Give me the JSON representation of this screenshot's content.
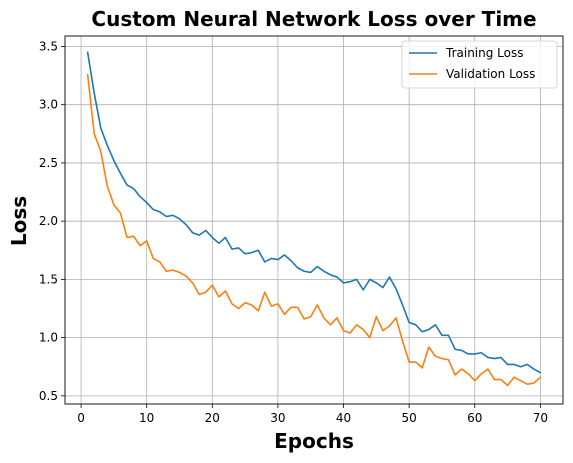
{
  "chart_data": {
    "type": "line",
    "title": "Custom Neural Network Loss over Time",
    "xlabel": "Epochs",
    "ylabel": "Loss",
    "xlim": [
      -2.45,
      73.45
    ],
    "ylim": [
      0.43,
      3.59
    ],
    "xticks": [
      0,
      10,
      20,
      30,
      40,
      50,
      60,
      70
    ],
    "yticks": [
      0.5,
      1.0,
      1.5,
      2.0,
      2.5,
      3.0,
      3.5
    ],
    "ytick_labels": [
      "0.5",
      "1.0",
      "1.5",
      "2.0",
      "2.5",
      "3.0",
      "3.5"
    ],
    "grid": true,
    "legend_position": "top-right",
    "x": [
      1,
      2,
      3,
      4,
      5,
      6,
      7,
      8,
      9,
      10,
      11,
      12,
      13,
      14,
      15,
      16,
      17,
      18,
      19,
      20,
      21,
      22,
      23,
      24,
      25,
      26,
      27,
      28,
      29,
      30,
      31,
      32,
      33,
      34,
      35,
      36,
      37,
      38,
      39,
      40,
      41,
      42,
      43,
      44,
      45,
      46,
      47,
      48,
      49,
      50,
      51,
      52,
      53,
      54,
      55,
      56,
      57,
      58,
      59,
      60,
      61,
      62,
      63,
      64,
      65,
      66,
      67,
      68,
      69,
      70
    ],
    "series": [
      {
        "name": "Training Loss",
        "color": "#1f77b4",
        "values": [
          3.45,
          3.1,
          2.8,
          2.65,
          2.52,
          2.41,
          2.31,
          2.28,
          2.21,
          2.16,
          2.1,
          2.08,
          2.04,
          2.05,
          2.02,
          1.97,
          1.9,
          1.88,
          1.92,
          1.86,
          1.81,
          1.86,
          1.76,
          1.77,
          1.72,
          1.73,
          1.75,
          1.65,
          1.68,
          1.67,
          1.71,
          1.66,
          1.6,
          1.57,
          1.56,
          1.61,
          1.57,
          1.54,
          1.52,
          1.47,
          1.48,
          1.5,
          1.41,
          1.5,
          1.47,
          1.43,
          1.52,
          1.42,
          1.28,
          1.13,
          1.11,
          1.05,
          1.07,
          1.11,
          1.02,
          1.02,
          0.9,
          0.89,
          0.86,
          0.86,
          0.87,
          0.83,
          0.82,
          0.83,
          0.77,
          0.77,
          0.75,
          0.77,
          0.73,
          0.7
        ]
      },
      {
        "name": "Validation Loss",
        "color": "#ff7f0e",
        "values": [
          3.26,
          2.75,
          2.6,
          2.3,
          2.14,
          2.07,
          1.86,
          1.87,
          1.79,
          1.83,
          1.68,
          1.65,
          1.57,
          1.58,
          1.56,
          1.53,
          1.47,
          1.37,
          1.39,
          1.45,
          1.35,
          1.4,
          1.29,
          1.25,
          1.3,
          1.28,
          1.23,
          1.39,
          1.27,
          1.29,
          1.2,
          1.26,
          1.26,
          1.16,
          1.18,
          1.28,
          1.17,
          1.11,
          1.17,
          1.06,
          1.04,
          1.11,
          1.07,
          1.0,
          1.18,
          1.06,
          1.1,
          1.17,
          0.97,
          0.79,
          0.79,
          0.74,
          0.92,
          0.84,
          0.82,
          0.81,
          0.68,
          0.73,
          0.69,
          0.63,
          0.69,
          0.73,
          0.64,
          0.64,
          0.59,
          0.66,
          0.63,
          0.6,
          0.61,
          0.66
        ]
      }
    ]
  }
}
